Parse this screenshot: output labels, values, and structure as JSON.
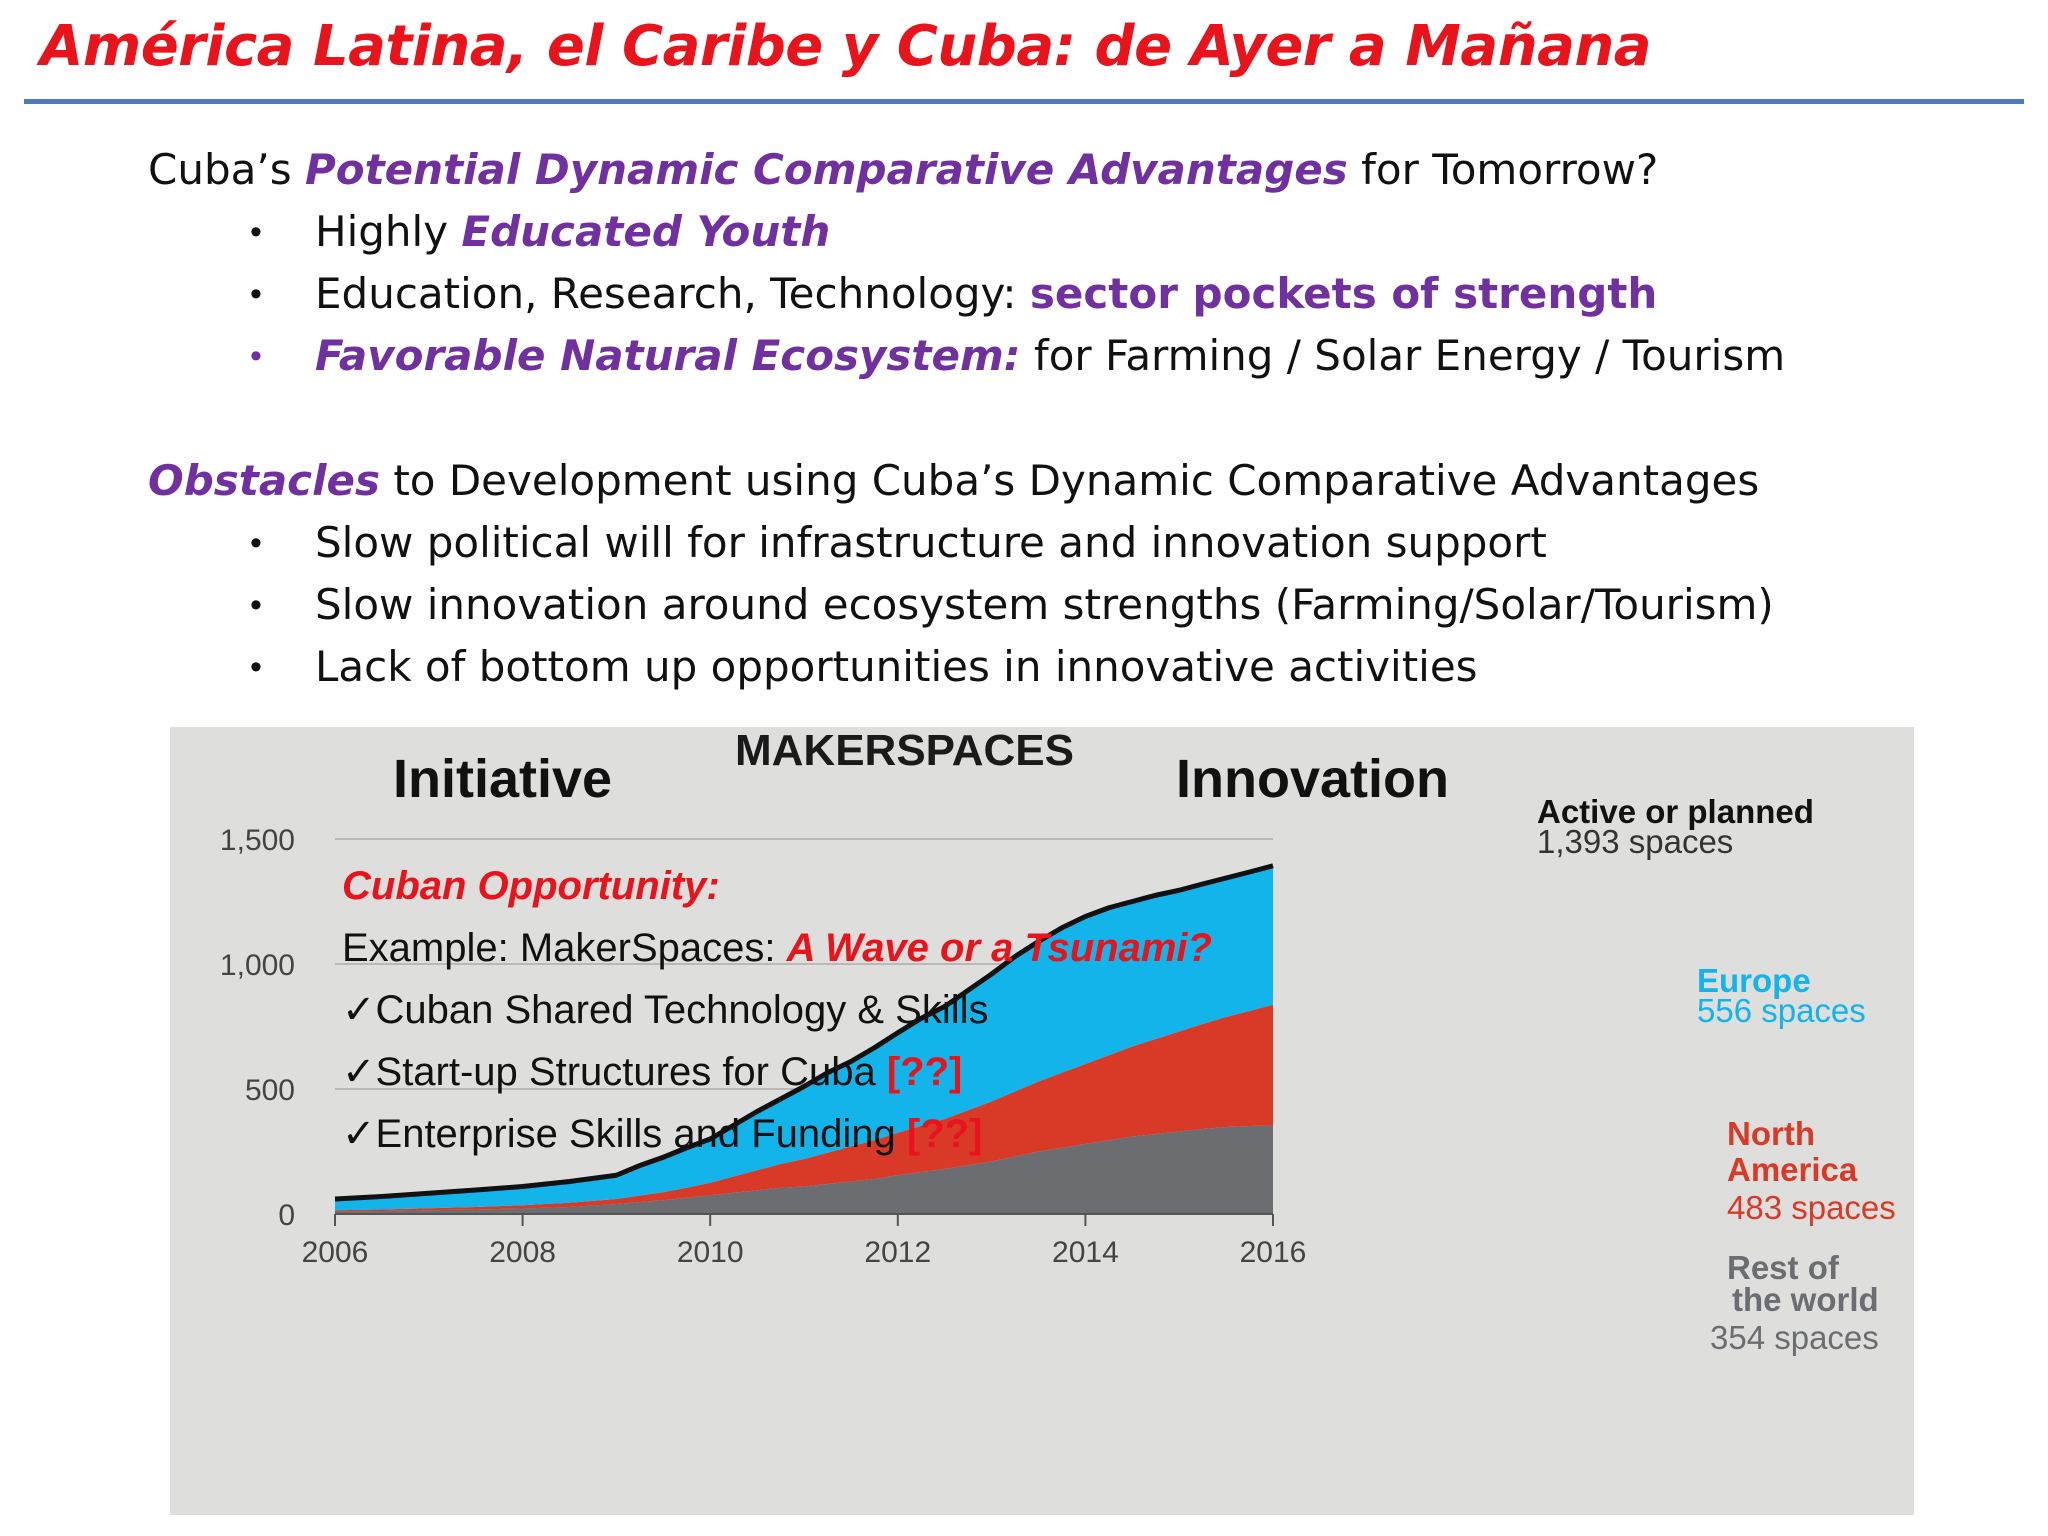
{
  "slide": {
    "title": "América Latina, el Caribe y Cuba: de Ayer a Mañana",
    "advantages": {
      "heading_prefix": "Cuba’s ",
      "heading_emphasis": "Potential Dynamic Comparative Advantages",
      "heading_suffix": " for Tomorrow?",
      "bullets": [
        {
          "text": "Highly ",
          "emphasis": "Educated Youth"
        },
        {
          "text": "Education, Research, Technology: ",
          "emphasis": "sector pockets of strength"
        },
        {
          "emphasis": "Favorable Natural Ecosystem:",
          "text": " for Farming / Solar Energy / Tourism"
        }
      ]
    },
    "obstacles": {
      "heading_emphasis": "Obstacles",
      "heading_suffix": " to Development using Cuba’s Dynamic Comparative Advantages",
      "bullets": [
        "Slow political will for infrastructure and innovation support",
        "Slow innovation around ecosystem strengths (Farming/Solar/Tourism)",
        "Lack of bottom up opportunities in innovative activities"
      ]
    },
    "bullet_glyph": "•",
    "colors": {
      "title": "#e8131b",
      "accent_purple": "#7030a0",
      "rule": "#4f78bd"
    }
  },
  "chart_overlay": {
    "label_initiative": "Initiative",
    "label_innovation": "Innovation",
    "opportunity_title": "Cuban Opportunity:",
    "example_prefix": "Example: MakerSpaces: ",
    "example_emphasis": "A Wave or a Tsunami?",
    "check_glyph": "✓",
    "checks": [
      {
        "text": "Cuban Shared Technology & Skills",
        "flag": ""
      },
      {
        "text": "Start-up Structures for Cuba  ",
        "flag": "[??]"
      },
      {
        "text": "Enterprise Skills and Funding ",
        "flag": "[??]"
      }
    ]
  },
  "chart_data": {
    "type": "area",
    "title": "MAKERSPACES",
    "x": [
      2006.0,
      2006.5,
      2007.0,
      2007.5,
      2008.0,
      2008.5,
      2009.0,
      2009.25,
      2009.5,
      2009.75,
      2010.0,
      2010.25,
      2010.5,
      2010.75,
      2011.0,
      2011.25,
      2011.5,
      2011.75,
      2012.0,
      2012.25,
      2012.5,
      2012.75,
      2013.0,
      2013.25,
      2013.5,
      2013.75,
      2014.0,
      2014.25,
      2014.5,
      2014.75,
      2015.0,
      2015.25,
      2015.5,
      2015.75,
      2016.0
    ],
    "xlim": [
      2006,
      2016
    ],
    "ylim": [
      0,
      1500
    ],
    "x_ticks": [
      "2006",
      "2008",
      "2010",
      "2012",
      "2014",
      "2016"
    ],
    "y_ticks": [
      "0",
      "500",
      "1,000",
      "1,500"
    ],
    "series": [
      {
        "name": "Rest of the world",
        "color": "#6c6d70",
        "values": [
          10,
          12,
          15,
          18,
          22,
          28,
          40,
          48,
          55,
          65,
          75,
          85,
          95,
          105,
          110,
          120,
          130,
          140,
          155,
          168,
          180,
          195,
          210,
          230,
          250,
          265,
          280,
          295,
          310,
          320,
          330,
          340,
          348,
          352,
          354
        ]
      },
      {
        "name": "North America",
        "color": "#d93a27",
        "values": [
          5,
          6,
          8,
          10,
          13,
          17,
          20,
          26,
          32,
          40,
          50,
          65,
          80,
          95,
          110,
          125,
          140,
          155,
          170,
          185,
          200,
          220,
          240,
          260,
          280,
          300,
          320,
          340,
          360,
          380,
          400,
          420,
          440,
          460,
          483
        ]
      },
      {
        "name": "Europe",
        "color": "#12b4ea",
        "values": [
          45,
          52,
          60,
          68,
          75,
          85,
          95,
          120,
          140,
          160,
          175,
          205,
          235,
          260,
          290,
          320,
          340,
          370,
          400,
          430,
          450,
          480,
          510,
          540,
          560,
          580,
          590,
          590,
          580,
          575,
          565,
          560,
          556,
          556,
          556
        ]
      }
    ],
    "legend": [
      {
        "name": "Europe",
        "count": "556 spaces",
        "color": "#12b4ea"
      },
      {
        "name": "North America",
        "count": "483 spaces",
        "color": "#d93a27"
      },
      {
        "name": "Rest of the world",
        "count": "354 spaces",
        "color": "#6c6d70"
      }
    ],
    "total_label": "Active or planned",
    "total_count": "1,393 spaces",
    "grid": true
  }
}
